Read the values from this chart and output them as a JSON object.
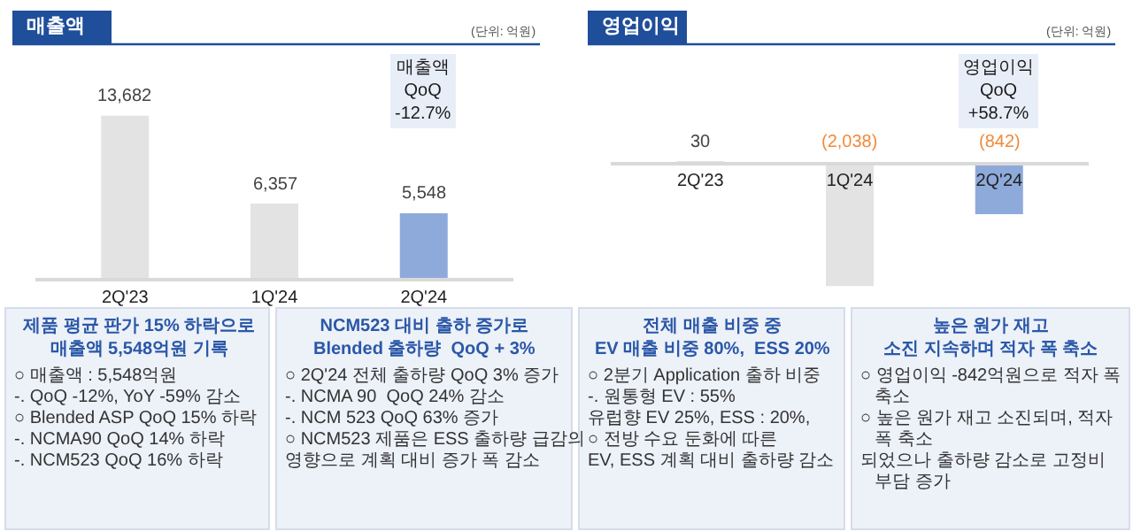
{
  "chart_data": [
    {
      "type": "bar",
      "title": "매출액",
      "categories": [
        "2Q'23",
        "1Q'24",
        "2Q'24"
      ],
      "values": [
        13682,
        6357,
        5548
      ],
      "colors": [
        "#e3e3e3",
        "#e3e3e3",
        "#8eaadb"
      ],
      "value_labels": [
        "13,682",
        "6,357",
        "5,548"
      ],
      "annotations": [
        "(단위: 억원)",
        "매출액\nQoQ\n-12.7%"
      ]
    },
    {
      "type": "bar",
      "title": "영업이익",
      "categories": [
        "2Q'23",
        "1Q'24",
        "2Q'24"
      ],
      "values": [
        30,
        -2038,
        -842
      ],
      "colors": [
        "#e3e3e3",
        "#e3e3e3",
        "#8eaadb"
      ],
      "value_labels": [
        "30",
        "(2,038)",
        "(842)"
      ],
      "annotations": [
        "(단위: 억원)",
        "영업이익\nQoQ\n+58.7%"
      ]
    },
    {
      "type": "other",
      "title": "제품 평균 판가 15% 하락으로\n매출액 5,548억원 기록",
      "annotations": [
        "○ 매출액 : 5,548억원",
        "-. QoQ -12%, YoY -59% 감소",
        "○ Blended ASP QoQ 15% 하락",
        "-. NCMA90 QoQ 14% 하락",
        "-. NCM523 QoQ 16% 하락"
      ]
    },
    {
      "type": "other",
      "title": "NCM523 대비 출하 증가로\nBlended 출하량  QoQ + 3%",
      "annotations": [
        "○ 2Q'24 전체 출하량 QoQ 3% 증가",
        "-. NCMA 90  QoQ 24% 감소",
        "-. NCM 523 QoQ 63% 증가",
        "○ NCM523 제품은 ESS 출하량 급감의",
        "영향으로 계획 대비 증가 폭 감소"
      ]
    },
    {
      "type": "other",
      "title": "전체 매출 비중 중\nEV 매출 비중 80%,  ESS 20%",
      "annotations": [
        "○ 2분기 Application 출하 비중",
        "-. 원통형 EV : 55%",
        "유럽향 EV 25%, ESS : 20%,",
        "○ 전방 수요 둔화에 따른",
        "EV, ESS 계획 대비 출하량 감소"
      ]
    },
    {
      "type": "other",
      "title": "높은 원가 재고\n소진 지속하며 적자 폭 축소",
      "annotations": [
        "○ 영업이익 -842억원으로 적자 폭 축소",
        "○ 높은 원가 재고 소진되며, 적자 폭 축소",
        "되었으나 출하량 감소로 고정비 부담 증가"
      ]
    }
  ]
}
